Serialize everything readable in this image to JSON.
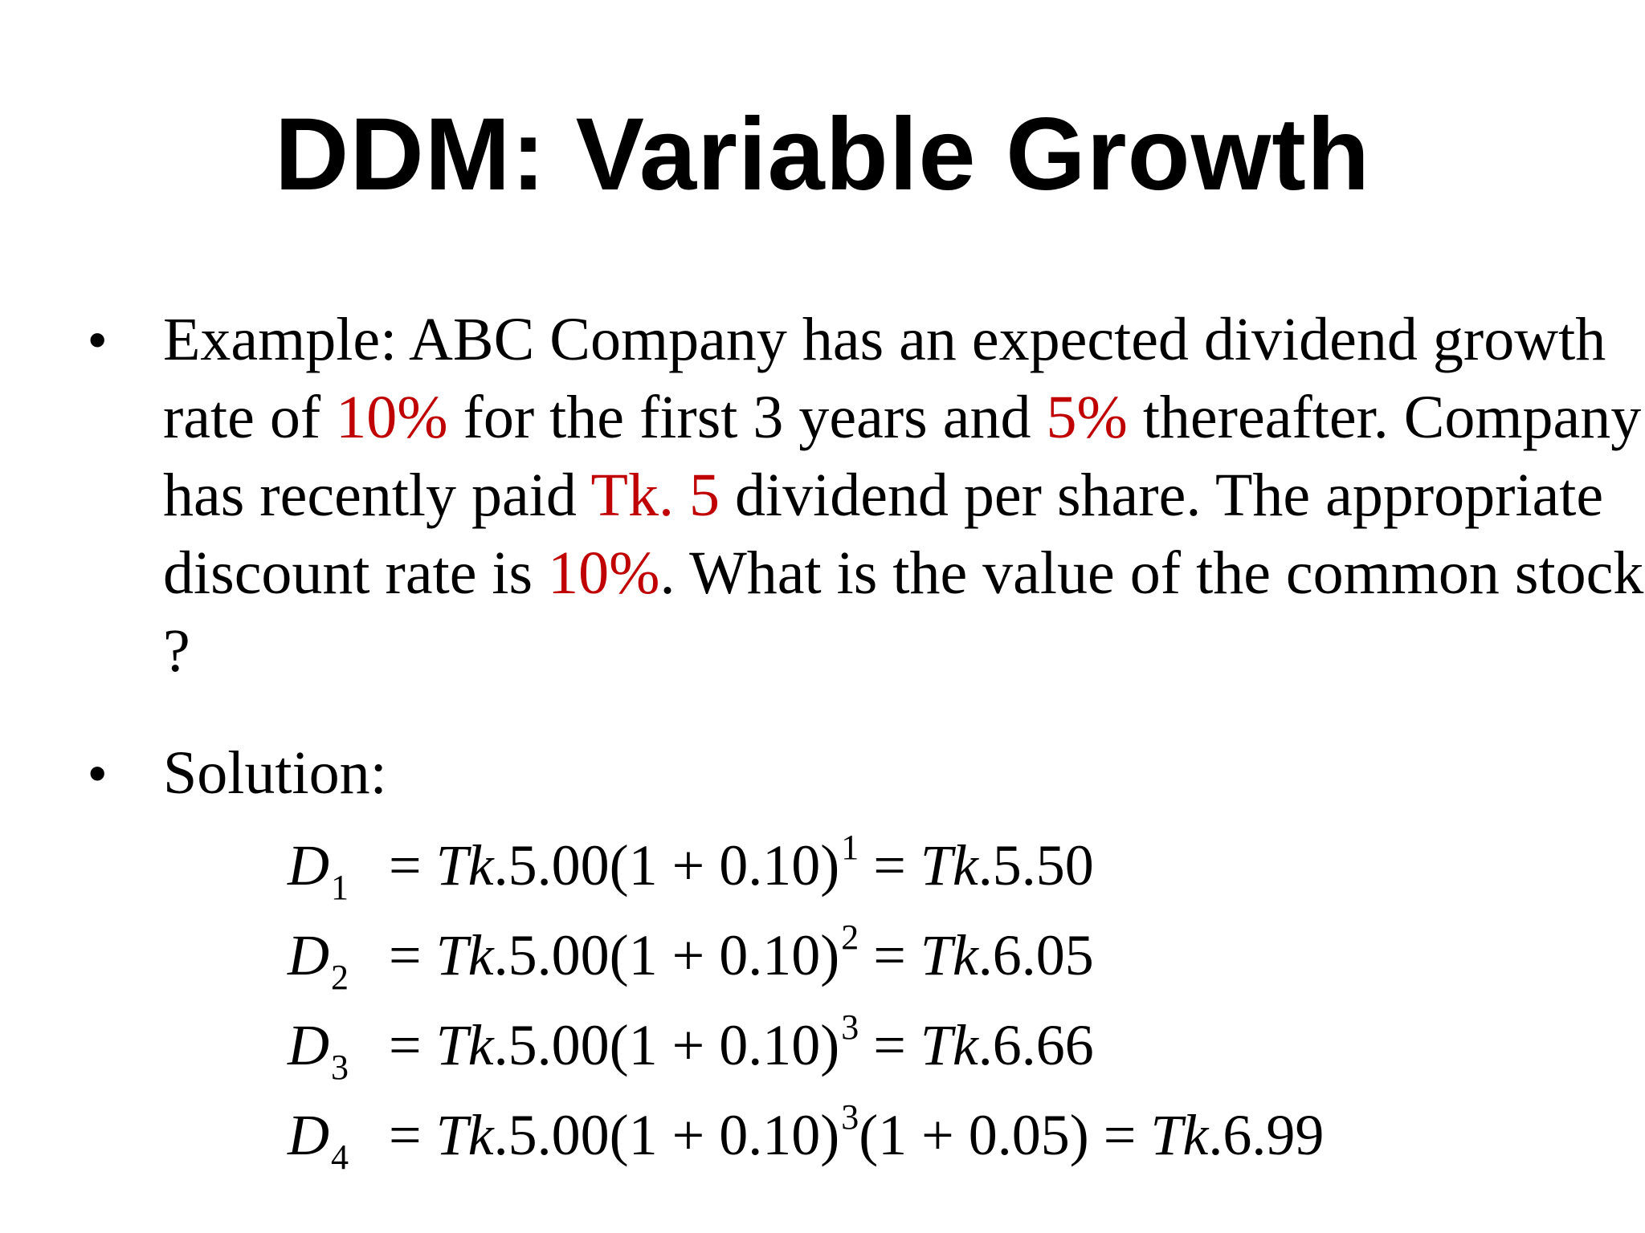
{
  "slide": {
    "title": "DDM: Variable Growth",
    "bullets": [
      {
        "symbol": "•",
        "segments": [
          {
            "text": "Example: ABC Company has an expected dividend growth rate of ",
            "highlight": false
          },
          {
            "text": "10%",
            "highlight": true
          },
          {
            "text": " for the first 3 years and ",
            "highlight": false
          },
          {
            "text": "5%",
            "highlight": true
          },
          {
            "text": " thereafter. Company has recently paid ",
            "highlight": false
          },
          {
            "text": "Tk. 5",
            "highlight": true
          },
          {
            "text": " dividend per share. The appropriate discount rate is ",
            "highlight": false
          },
          {
            "text": "10%",
            "highlight": true
          },
          {
            "text": ". What is the value of the common stock ?",
            "highlight": false
          }
        ]
      },
      {
        "symbol": "•",
        "label": "Solution:"
      }
    ],
    "equations": [
      {
        "var": "D",
        "sub": "1",
        "tk": "Tk",
        "base": ".5.00(1",
        "plus": "+",
        "rate": "0.10)",
        "exp": "1",
        "extra": "",
        "eq": "=",
        "result_tk": "Tk",
        "result": ".5.50"
      },
      {
        "var": "D",
        "sub": "2",
        "tk": "Tk",
        "base": ".5.00(1",
        "plus": "+",
        "rate": "0.10)",
        "exp": "2",
        "extra": "",
        "eq": "=",
        "result_tk": "Tk",
        "result": ".6.05"
      },
      {
        "var": "D",
        "sub": "3",
        "tk": "Tk",
        "base": ".5.00(1",
        "plus": "+",
        "rate": "0.10)",
        "exp": "3",
        "extra": "",
        "eq": "=",
        "result_tk": "Tk",
        "result": ".6.66"
      },
      {
        "var": "D",
        "sub": "4",
        "tk": "Tk",
        "base": ".5.00(1",
        "plus": "+",
        "rate": "0.10)",
        "exp": "3",
        "extra": "(1 + 0.05)",
        "eq": "=",
        "result_tk": "Tk",
        "result": ".6.99"
      }
    ],
    "colors": {
      "highlight": "#c00000",
      "text": "#000000",
      "background": "#ffffff"
    }
  }
}
